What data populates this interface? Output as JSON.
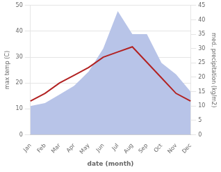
{
  "chart_data": {
    "type": "line",
    "xlabel": "date (month)",
    "ylabel": "max temp (C)",
    "y2label": "med. precipitation (kg/m2)",
    "categories": [
      "Jan",
      "Feb",
      "Mar",
      "Apr",
      "May",
      "Jun",
      "Jul",
      "Aug",
      "Sep",
      "Oct",
      "Nov",
      "Dec"
    ],
    "series": [
      {
        "type": "area",
        "axis": "y2",
        "color": "#b8c4e8",
        "values": [
          10,
          11,
          14,
          17,
          22,
          30,
          43,
          35,
          35,
          25,
          21,
          15
        ]
      },
      {
        "type": "line",
        "color": "#b22222",
        "values": [
          13,
          16,
          20,
          23,
          26,
          30,
          32,
          34,
          28,
          22,
          16,
          13
        ]
      }
    ],
    "ylim": [
      0,
      50
    ],
    "yticks": [
      0,
      10,
      20,
      30,
      40,
      50
    ],
    "y2lim": [
      0,
      45
    ],
    "y2ticks": [
      0,
      5,
      10,
      15,
      20,
      25,
      30,
      35,
      40,
      45
    ],
    "grid": true
  }
}
